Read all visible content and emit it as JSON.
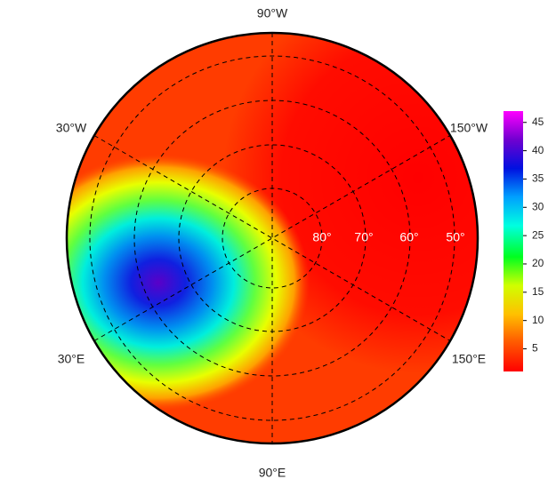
{
  "map": {
    "lon_labels": [
      "90°W",
      "30°W",
      "150°W",
      "30°E",
      "150°E",
      "90°E"
    ],
    "lat_labels": [
      "80°",
      "70°",
      "60°",
      "50°"
    ],
    "colorbar": {
      "lim": [
        1,
        47
      ],
      "ticks": [
        5,
        10,
        15,
        20,
        25,
        30,
        35,
        40,
        45
      ]
    }
  }
}
